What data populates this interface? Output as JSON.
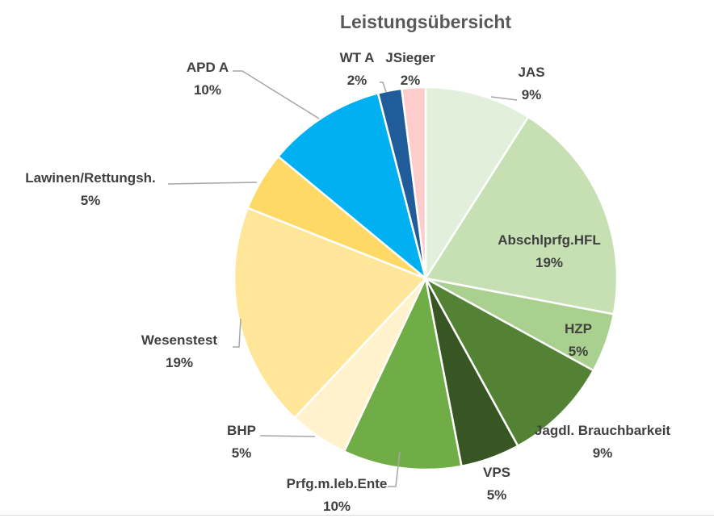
{
  "chart_data": {
    "type": "pie",
    "title": "Leistungsübersicht",
    "categories": [
      "JAS",
      "Abschlprfg.HFL",
      "HZP",
      "Jagdl. Brauchbarkeit",
      "VPS",
      "Prfg.m.leb.Ente",
      "BHP",
      "Wesenstest",
      "Lawinen/Rettungsh.",
      "APD A",
      "WT A",
      "JSieger"
    ],
    "values": [
      9,
      19,
      5,
      9,
      5,
      10,
      5,
      19,
      5,
      10,
      2,
      2
    ],
    "labels": [
      "9%",
      "19%",
      "5%",
      "9%",
      "5%",
      "10%",
      "5%",
      "19%",
      "5%",
      "10%",
      "2%",
      "2%"
    ],
    "colors": [
      "#e2efda",
      "#c6e0b4",
      "#a9d08e",
      "#548235",
      "#375623",
      "#70ad47",
      "#fff2cc",
      "#ffe699",
      "#ffd966",
      "#00b0f0",
      "#1f5c99",
      "#ffcccc"
    ],
    "unit": "percent",
    "legend": "none"
  }
}
